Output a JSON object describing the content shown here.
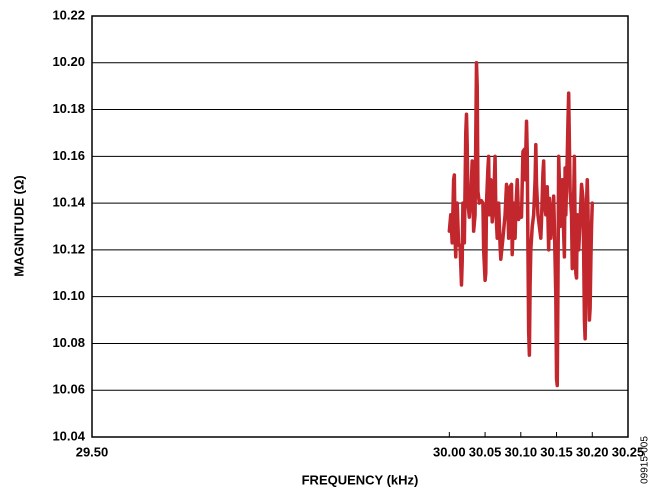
{
  "chart_data": {
    "type": "line",
    "x_label": "FREQUENCY (kHz)",
    "y_label": "MAGNITUDE (Ω)",
    "annotation": "09915-005",
    "xlim": [
      29.5,
      30.25
    ],
    "ylim": [
      10.04,
      10.22
    ],
    "xticks": [
      {
        "value": 29.5,
        "label": "29.50"
      },
      {
        "value": 30,
        "label": "30.00"
      },
      30.05,
      {
        "value": 30.1,
        "label": "30.10"
      },
      30.15,
      {
        "value": 30.2,
        "label": "30.20"
      },
      30.25
    ],
    "yticks": [
      10.04,
      10.06,
      10.08,
      {
        "value": 10.1,
        "label": "10.10"
      },
      10.12,
      10.14,
      10.16,
      10.18,
      {
        "value": 10.2,
        "label": "10.20"
      },
      10.22
    ],
    "grid": true,
    "x": [
      30.0,
      30.002,
      30.004,
      30.006,
      30.007,
      30.008,
      30.009,
      30.01,
      30.011,
      30.013,
      30.015,
      30.017,
      30.018,
      30.019,
      30.021,
      30.023,
      30.024,
      30.025,
      30.026,
      30.028,
      30.03,
      30.032,
      30.033,
      30.034,
      30.036,
      30.038,
      30.039,
      30.04,
      30.042,
      30.045,
      30.047,
      30.048,
      30.05,
      30.051,
      30.052,
      30.054,
      30.055,
      30.056,
      30.058,
      30.06,
      30.062,
      30.064,
      30.065,
      30.067,
      30.069,
      30.071,
      30.072,
      30.075,
      30.078,
      30.08,
      30.082,
      30.083,
      30.085,
      30.087,
      30.088,
      30.09,
      30.092,
      30.093,
      30.095,
      30.097,
      30.099,
      30.101,
      30.103,
      30.105,
      30.106,
      30.108,
      30.109,
      30.11,
      30.111,
      30.112,
      30.113,
      30.114,
      30.116,
      30.118,
      30.12,
      30.121,
      30.122,
      30.124,
      30.126,
      30.128,
      30.129,
      30.131,
      30.132,
      30.133,
      30.135,
      30.137,
      30.139,
      30.14,
      30.142,
      30.144,
      30.146,
      30.147,
      30.149,
      30.15,
      30.151,
      30.152,
      30.153,
      30.154,
      30.155,
      30.156,
      30.158,
      30.159,
      30.161,
      30.162,
      30.163,
      30.165,
      30.166,
      30.167,
      30.168,
      30.169,
      30.171,
      30.172,
      30.173,
      30.175,
      30.176,
      30.177,
      30.178,
      30.179,
      30.18,
      30.181,
      30.183,
      30.185,
      30.187,
      30.188,
      30.189,
      30.19,
      30.191,
      30.192,
      30.193,
      30.194,
      30.195,
      30.196,
      30.197,
      30.198,
      30.199,
      30.2
    ],
    "series": [
      {
        "color": "#c1272d",
        "values": [
          10.128,
          10.135,
          10.123,
          10.15,
          10.152,
          10.125,
          10.117,
          10.14,
          10.14,
          10.122,
          10.122,
          10.105,
          10.115,
          10.14,
          10.123,
          10.17,
          10.178,
          10.165,
          10.14,
          10.134,
          10.143,
          10.158,
          10.145,
          10.128,
          10.135,
          10.2,
          10.19,
          10.145,
          10.14,
          10.141,
          10.14,
          10.12,
          10.107,
          10.11,
          10.14,
          10.155,
          10.16,
          10.135,
          10.15,
          10.132,
          10.14,
          10.16,
          10.138,
          10.125,
          10.14,
          10.122,
          10.116,
          10.125,
          10.135,
          10.148,
          10.138,
          10.125,
          10.147,
          10.148,
          10.118,
          10.14,
          10.125,
          10.137,
          10.15,
          10.133,
          10.135,
          10.134,
          10.162,
          10.163,
          10.15,
          10.175,
          10.162,
          10.12,
          10.085,
          10.075,
          10.105,
          10.12,
          10.13,
          10.135,
          10.15,
          10.165,
          10.148,
          10.135,
          10.13,
          10.125,
          10.133,
          10.153,
          10.158,
          10.14,
          10.135,
          10.147,
          10.12,
          10.142,
          10.125,
          10.135,
          10.143,
          10.13,
          10.1,
          10.065,
          10.062,
          10.105,
          10.16,
          10.15,
          10.13,
          10.145,
          10.15,
          10.137,
          10.117,
          10.155,
          10.135,
          10.16,
          10.175,
          10.187,
          10.165,
          10.145,
          10.135,
          10.112,
          10.125,
          10.16,
          10.13,
          10.11,
          10.108,
          10.135,
          10.127,
          10.12,
          10.133,
          10.148,
          10.142,
          10.118,
          10.09,
          10.082,
          10.1,
          10.14,
          10.15,
          10.137,
          10.115,
          10.09,
          10.095,
          10.115,
          10.13,
          10.14
        ]
      }
    ]
  }
}
